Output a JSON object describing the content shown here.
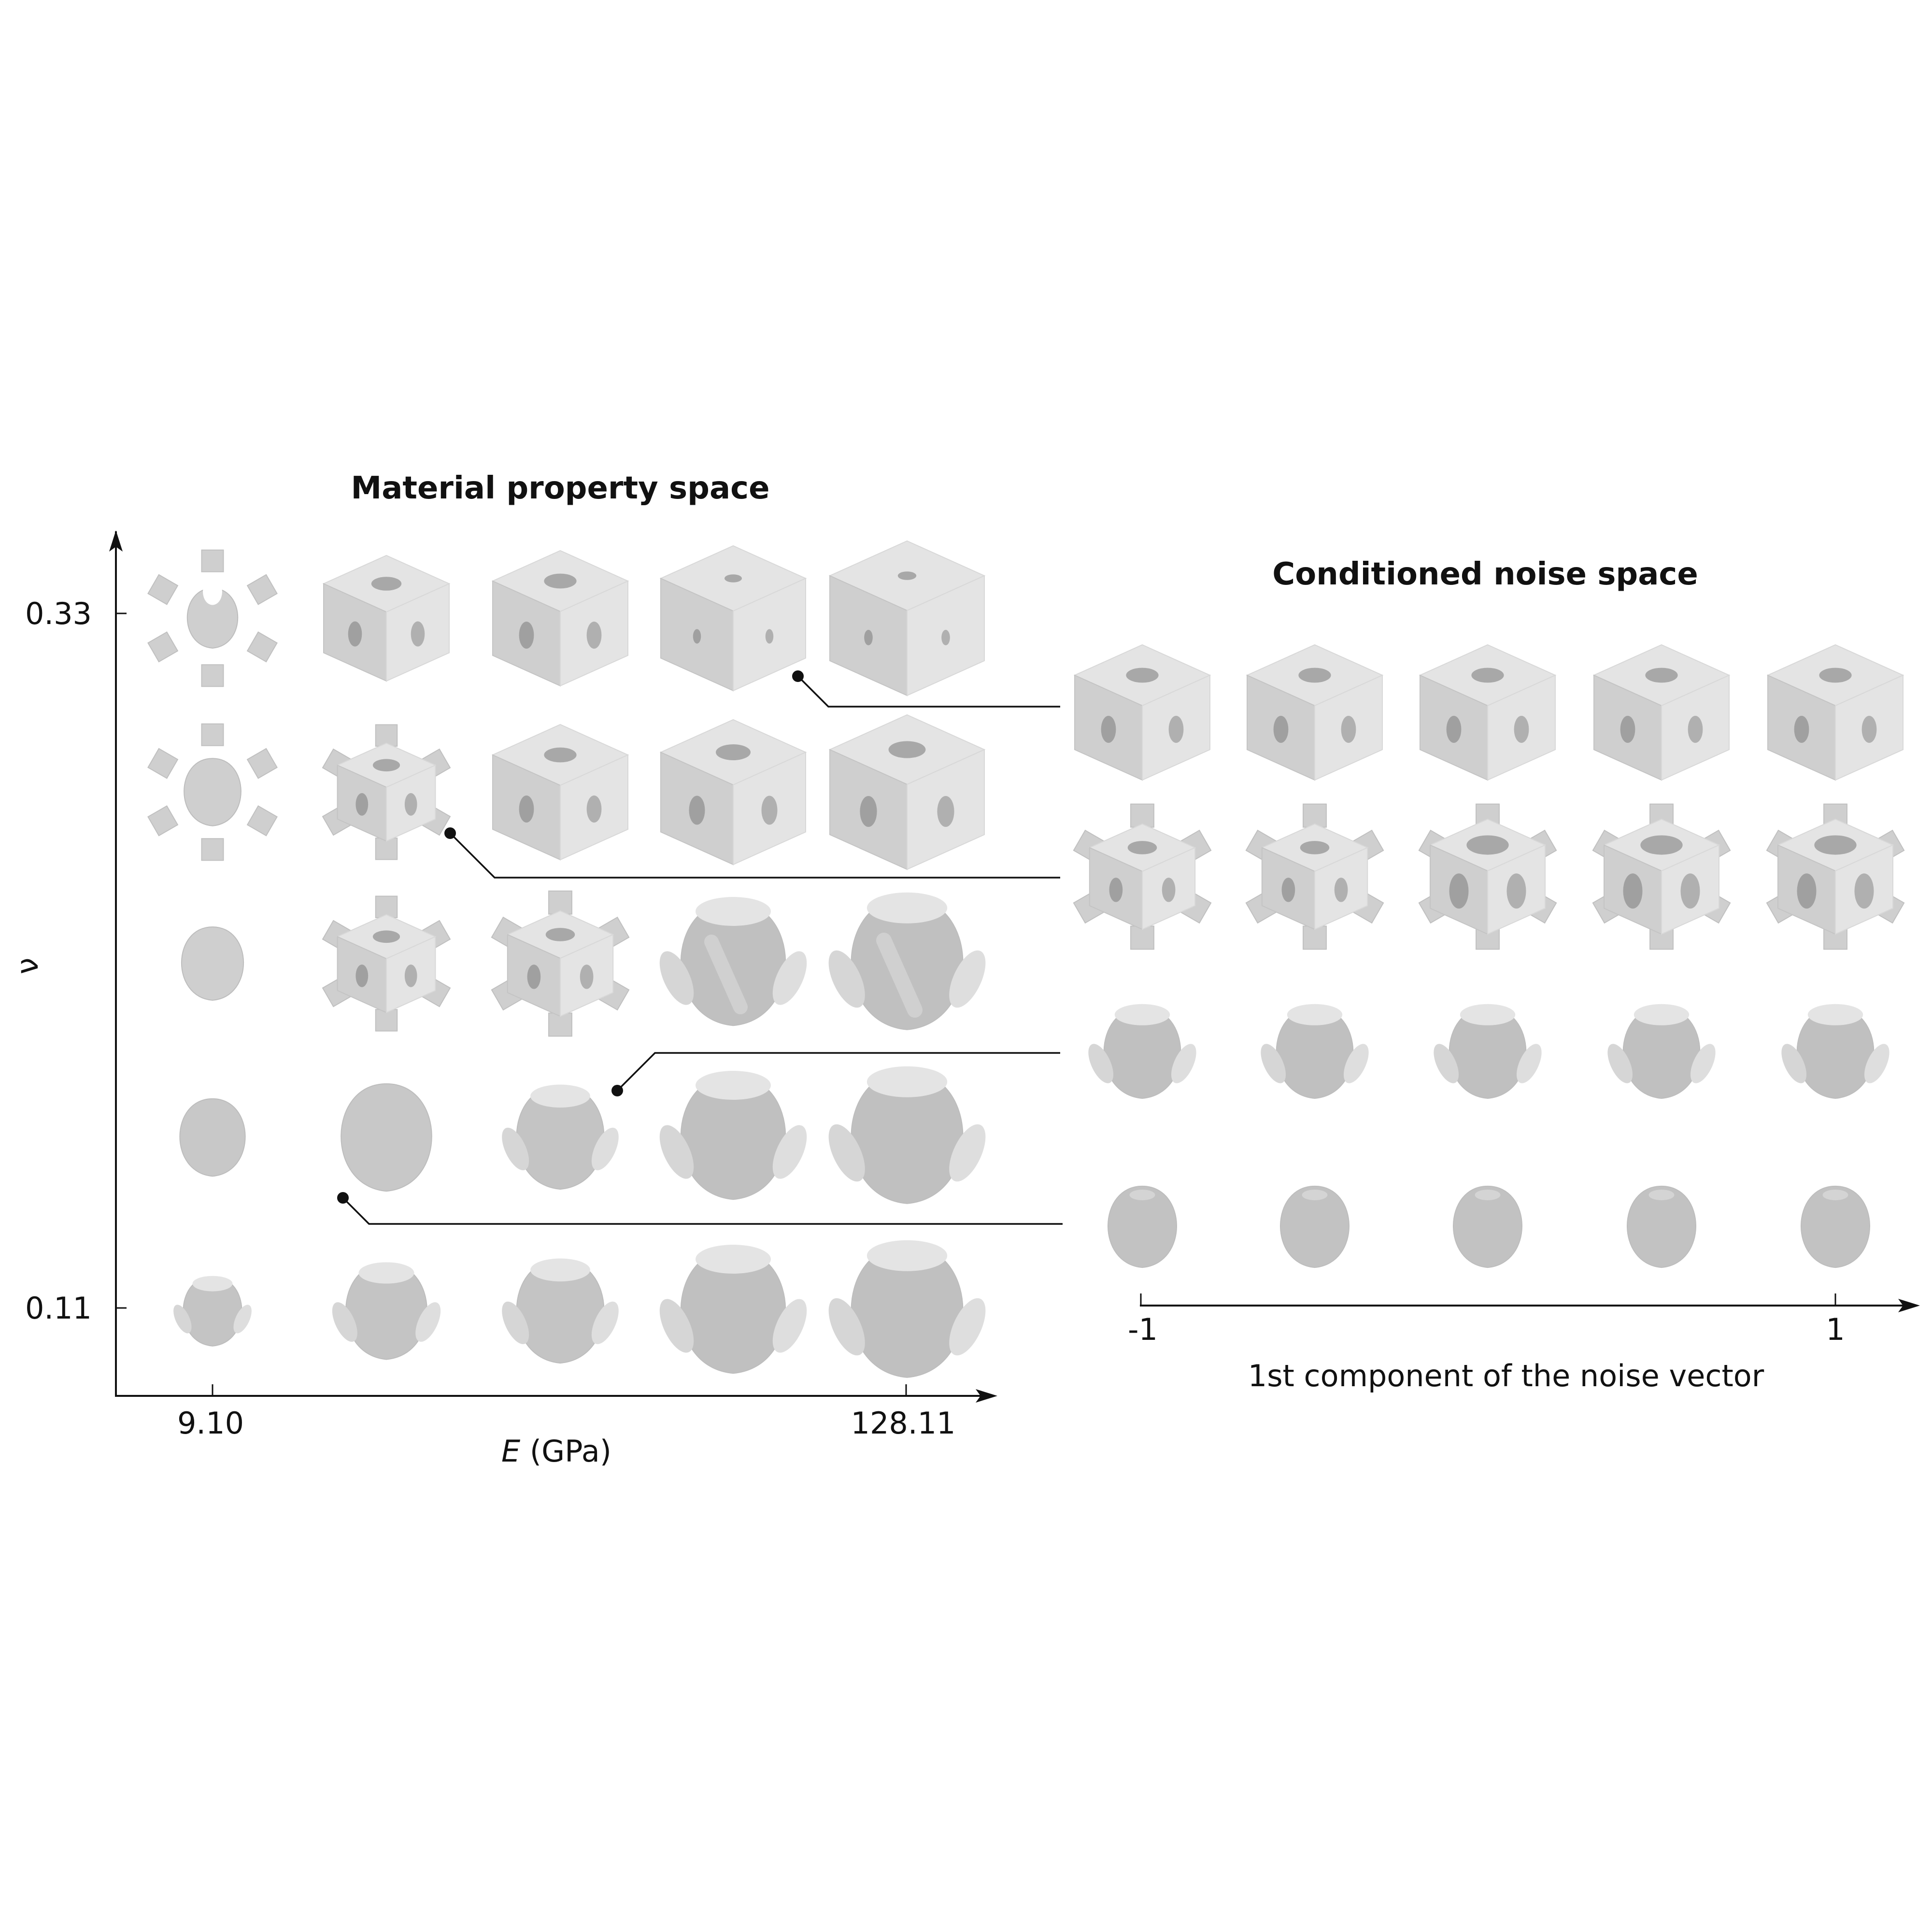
{
  "left_panel": {
    "title": "Material property space",
    "x_axis": {
      "label_italic": "E",
      "label_unit": " (GPa)",
      "tick_min": "9.10",
      "tick_max": "128.11"
    },
    "y_axis": {
      "label": "ν",
      "tick_top": "0.33",
      "tick_bottom": "0.11"
    },
    "rows": [
      [
        "cross-flower",
        "cube-holes",
        "cube-holes",
        "cube-solid",
        "cube-solid"
      ],
      [
        "spiky-star",
        "cube-spiky",
        "cube-holes",
        "cube-holes",
        "cube-holes"
      ],
      [
        "blob",
        "cube-spiky",
        "cube-spiky",
        "rhombic-flat",
        "rhombic-flat"
      ],
      [
        "blob-round",
        "blob-round",
        "blob-pods",
        "rhombic-pods",
        "rhombic-pods"
      ],
      [
        "blob-pods",
        "blob-pods",
        "blob-pods",
        "rhombic-pods",
        "rhombic-pods"
      ]
    ]
  },
  "right_panel": {
    "title": "Conditioned noise space",
    "x_axis": {
      "label": "1st component of the noise vector",
      "tick_min": "-1",
      "tick_max": "1"
    },
    "rows": [
      [
        "cube-holes",
        "cube-holes",
        "cube-holes",
        "cube-holes",
        "cube-holes"
      ],
      [
        "cube-spiky",
        "cube-spiky",
        "cube-spiky-holes",
        "cube-spiky-holes",
        "cube-spiky-holes"
      ],
      [
        "rhombic-pods",
        "rhombic-pods",
        "rhombic-pods",
        "rhombic-pods",
        "rhombic-pods"
      ],
      [
        "blob-dome",
        "blob-dome",
        "blob-dome",
        "blob-dome",
        "blob-dome"
      ]
    ]
  },
  "connectors": [
    {
      "from": "left row 1 col 4",
      "to": "right row 1"
    },
    {
      "from": "left row 2 col 2",
      "to": "right row 2"
    },
    {
      "from": "left row 4 col 3",
      "to": "right row 3"
    },
    {
      "from": "left row 4-5 col 2",
      "to": "right row 4"
    }
  ],
  "colors": {
    "shape_light": "#e4e4e4",
    "shape_mid": "#cfcfcf",
    "shape_dark": "#b4b4b4",
    "axis": "#111111"
  }
}
